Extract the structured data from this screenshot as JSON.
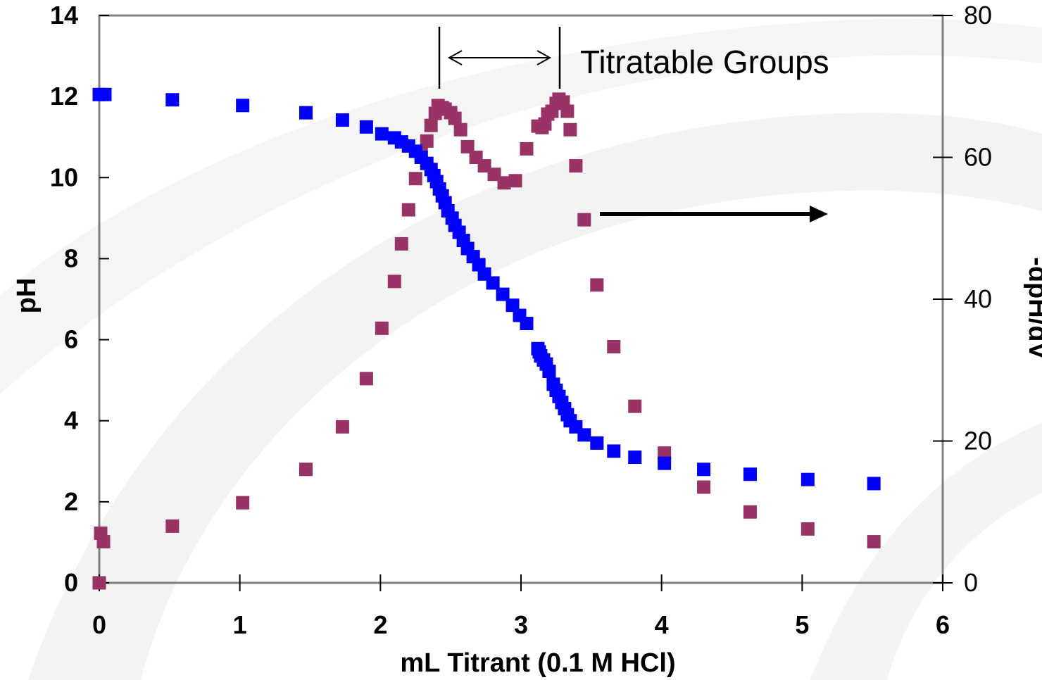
{
  "chart_data": {
    "type": "scatter",
    "title": "",
    "xlabel": "mL Titrant (0.1 M HCl)",
    "ylabel_left": "pH",
    "ylabel_right": "-dpH/dV",
    "xlim": [
      0,
      6
    ],
    "ylim_left": [
      0,
      14
    ],
    "ylim_right": [
      0,
      80
    ],
    "x_ticks": [
      "0",
      "1",
      "2",
      "3",
      "4",
      "5",
      "6"
    ],
    "y_ticks_left": [
      "0",
      "2",
      "4",
      "6",
      "8",
      "10",
      "12",
      "14"
    ],
    "y_ticks_right": [
      "0",
      "20",
      "40",
      "60",
      "80"
    ],
    "grid": false,
    "legend": "none",
    "annotation": "Titratable Groups",
    "series": [
      {
        "axis": "left",
        "color": "#0000ff",
        "points": [
          [
            0.0,
            12.05
          ],
          [
            0.04,
            12.05
          ],
          [
            0.52,
            11.92
          ],
          [
            1.02,
            11.78
          ],
          [
            1.47,
            11.6
          ],
          [
            1.73,
            11.42
          ],
          [
            1.9,
            11.25
          ],
          [
            2.01,
            11.08
          ],
          [
            2.1,
            10.98
          ],
          [
            2.15,
            10.88
          ],
          [
            2.2,
            10.78
          ],
          [
            2.25,
            10.65
          ],
          [
            2.29,
            10.5
          ],
          [
            2.33,
            10.35
          ],
          [
            2.36,
            10.2
          ],
          [
            2.38,
            10.05
          ],
          [
            2.4,
            9.9
          ],
          [
            2.42,
            9.72
          ],
          [
            2.44,
            9.55
          ],
          [
            2.46,
            9.38
          ],
          [
            2.48,
            9.18
          ],
          [
            2.51,
            9.0
          ],
          [
            2.53,
            8.82
          ],
          [
            2.56,
            8.65
          ],
          [
            2.59,
            8.45
          ],
          [
            2.62,
            8.25
          ],
          [
            2.66,
            8.05
          ],
          [
            2.7,
            7.85
          ],
          [
            2.74,
            7.62
          ],
          [
            2.8,
            7.4
          ],
          [
            2.87,
            7.12
          ],
          [
            2.94,
            6.85
          ],
          [
            2.99,
            6.6
          ],
          [
            3.04,
            6.4
          ],
          [
            3.12,
            5.78
          ],
          [
            3.13,
            5.7
          ],
          [
            3.14,
            5.6
          ],
          [
            3.16,
            5.5
          ],
          [
            3.18,
            5.4
          ],
          [
            3.2,
            5.22
          ],
          [
            3.23,
            4.9
          ],
          [
            3.25,
            4.75
          ],
          [
            3.27,
            4.6
          ],
          [
            3.29,
            4.45
          ],
          [
            3.31,
            4.3
          ],
          [
            3.33,
            4.15
          ],
          [
            3.35,
            4.0
          ],
          [
            3.39,
            3.85
          ],
          [
            3.45,
            3.65
          ],
          [
            3.54,
            3.45
          ],
          [
            3.66,
            3.25
          ],
          [
            3.81,
            3.1
          ],
          [
            4.02,
            2.95
          ],
          [
            4.3,
            2.8
          ],
          [
            4.63,
            2.68
          ],
          [
            5.04,
            2.55
          ],
          [
            5.51,
            2.45
          ]
        ]
      },
      {
        "axis": "right",
        "color": "#993366",
        "points": [
          [
            0.0,
            0.0
          ],
          [
            0.01,
            7.0
          ],
          [
            0.03,
            5.8
          ],
          [
            0.52,
            8.0
          ],
          [
            1.02,
            11.3
          ],
          [
            1.47,
            16.0
          ],
          [
            1.73,
            22.0
          ],
          [
            1.9,
            28.8
          ],
          [
            2.01,
            35.9
          ],
          [
            2.1,
            42.5
          ],
          [
            2.15,
            47.8
          ],
          [
            2.2,
            52.6
          ],
          [
            2.25,
            57.0
          ],
          [
            2.29,
            60.5
          ],
          [
            2.33,
            62.3
          ],
          [
            2.36,
            64.5
          ],
          [
            2.39,
            66.2
          ],
          [
            2.41,
            67.3
          ],
          [
            2.44,
            67.0
          ],
          [
            2.46,
            66.8
          ],
          [
            2.5,
            66.3
          ],
          [
            2.53,
            65.5
          ],
          [
            2.57,
            63.9
          ],
          [
            2.62,
            61.5
          ],
          [
            2.68,
            60.0
          ],
          [
            2.74,
            58.8
          ],
          [
            2.81,
            57.6
          ],
          [
            2.88,
            56.4
          ],
          [
            2.96,
            56.7
          ],
          [
            3.04,
            61.2
          ],
          [
            3.12,
            64.4
          ],
          [
            3.15,
            64.2
          ],
          [
            3.17,
            64.7
          ],
          [
            3.19,
            66.1
          ],
          [
            3.22,
            66.5
          ],
          [
            3.25,
            67.6
          ],
          [
            3.27,
            68.2
          ],
          [
            3.3,
            67.8
          ],
          [
            3.33,
            66.5
          ],
          [
            3.35,
            63.9
          ],
          [
            3.39,
            58.8
          ],
          [
            3.45,
            51.2
          ],
          [
            3.54,
            42.0
          ],
          [
            3.66,
            33.3
          ],
          [
            3.81,
            24.9
          ],
          [
            4.02,
            18.3
          ],
          [
            4.3,
            13.5
          ],
          [
            4.63,
            10.0
          ],
          [
            5.04,
            7.6
          ],
          [
            5.51,
            5.8
          ]
        ]
      }
    ]
  }
}
